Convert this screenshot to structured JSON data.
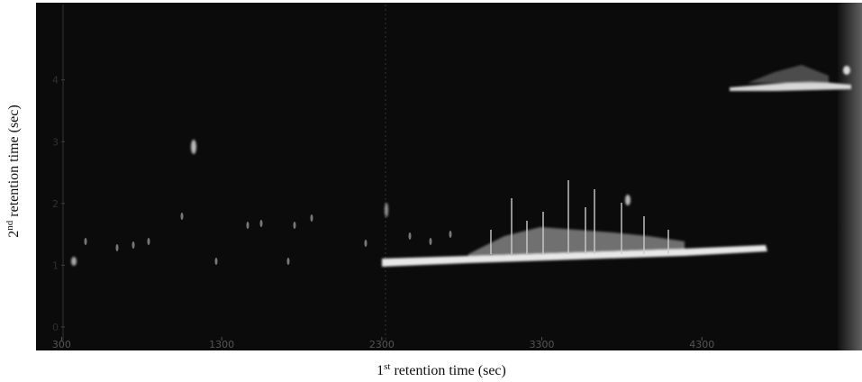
{
  "chart_data": {
    "type": "heatmap",
    "xlabel": [
      "1",
      "st",
      " retention time (sec)"
    ],
    "ylabel": [
      "2",
      "nd",
      " retention time (sec)"
    ],
    "xlim": [
      140,
      5300
    ],
    "xticks": [
      300,
      1300,
      2300,
      3300,
      4300
    ],
    "ylim": [
      -0.22,
      5.25
    ],
    "yticks": [
      0,
      1,
      2,
      3,
      4
    ]
  }
}
